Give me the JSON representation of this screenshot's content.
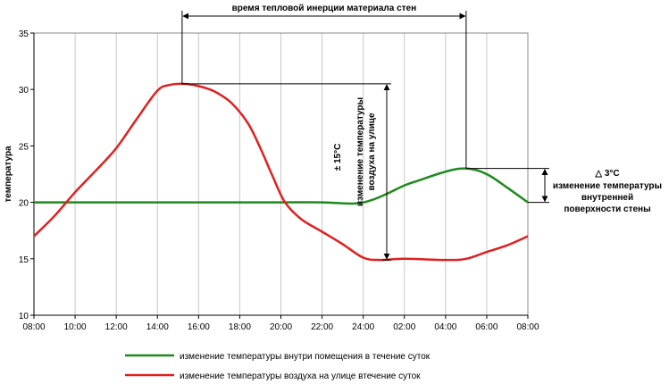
{
  "chart_data": {
    "type": "line",
    "title": "",
    "xlabel": "",
    "ylabel": "температура",
    "ylim": [
      10,
      35
    ],
    "yticks": [
      10,
      15,
      20,
      25,
      30,
      35
    ],
    "categories": [
      "08:00",
      "10:00",
      "12:00",
      "14:00",
      "16:00",
      "18:00",
      "20:00",
      "22:00",
      "24:00",
      "02:00",
      "04:00",
      "06:00",
      "08:00"
    ],
    "grid": "vertical",
    "legend_position": "bottom",
    "series": [
      {
        "name": "изменение температуры внутри помещения в течение суток",
        "color": "#1e8a1e",
        "points": [
          [
            0,
            20
          ],
          [
            1,
            20
          ],
          [
            2,
            20
          ],
          [
            3,
            20
          ],
          [
            4,
            20
          ],
          [
            5,
            20
          ],
          [
            6,
            20
          ],
          [
            7,
            20
          ],
          [
            7.8,
            19.9
          ],
          [
            8.2,
            20.2
          ],
          [
            8.6,
            20.8
          ],
          [
            9.0,
            21.5
          ],
          [
            9.4,
            22.0
          ],
          [
            9.8,
            22.5
          ],
          [
            10.2,
            22.9
          ],
          [
            10.5,
            23.0
          ],
          [
            10.8,
            22.8
          ],
          [
            11.1,
            22.3
          ],
          [
            11.5,
            21.3
          ],
          [
            12.0,
            20.0
          ]
        ]
      },
      {
        "name": "изменение температуры воздуха на улице втечение суток",
        "color": "#e02020",
        "points": [
          [
            0,
            17
          ],
          [
            0.5,
            18.8
          ],
          [
            1,
            20.9
          ],
          [
            1.5,
            22.8
          ],
          [
            2,
            24.8
          ],
          [
            2.5,
            27.4
          ],
          [
            3,
            29.9
          ],
          [
            3.3,
            30.4
          ],
          [
            3.6,
            30.5
          ],
          [
            4,
            30.3
          ],
          [
            4.4,
            29.8
          ],
          [
            4.8,
            28.8
          ],
          [
            5.2,
            27.0
          ],
          [
            5.5,
            24.8
          ],
          [
            5.8,
            22.3
          ],
          [
            6.1,
            20.0
          ],
          [
            6.5,
            18.5
          ],
          [
            7,
            17.4
          ],
          [
            7.5,
            16.3
          ],
          [
            8,
            15.1
          ],
          [
            8.4,
            14.9
          ],
          [
            9,
            15.0
          ],
          [
            10,
            14.9
          ],
          [
            10.5,
            15.0
          ],
          [
            11,
            15.6
          ],
          [
            11.5,
            16.2
          ],
          [
            12,
            17.0
          ]
        ]
      }
    ],
    "annotations": {
      "inertia_label": "время тепловой инерции материала стен",
      "outdoor_delta": "± 15°С",
      "outdoor_label_line1": "изменение температуры",
      "outdoor_label_line2": "воздуха на улице",
      "indoor_delta": "△ 3°С",
      "indoor_label_lines": [
        "изменение температуры",
        "внутренней",
        "поверхности стены"
      ]
    }
  }
}
